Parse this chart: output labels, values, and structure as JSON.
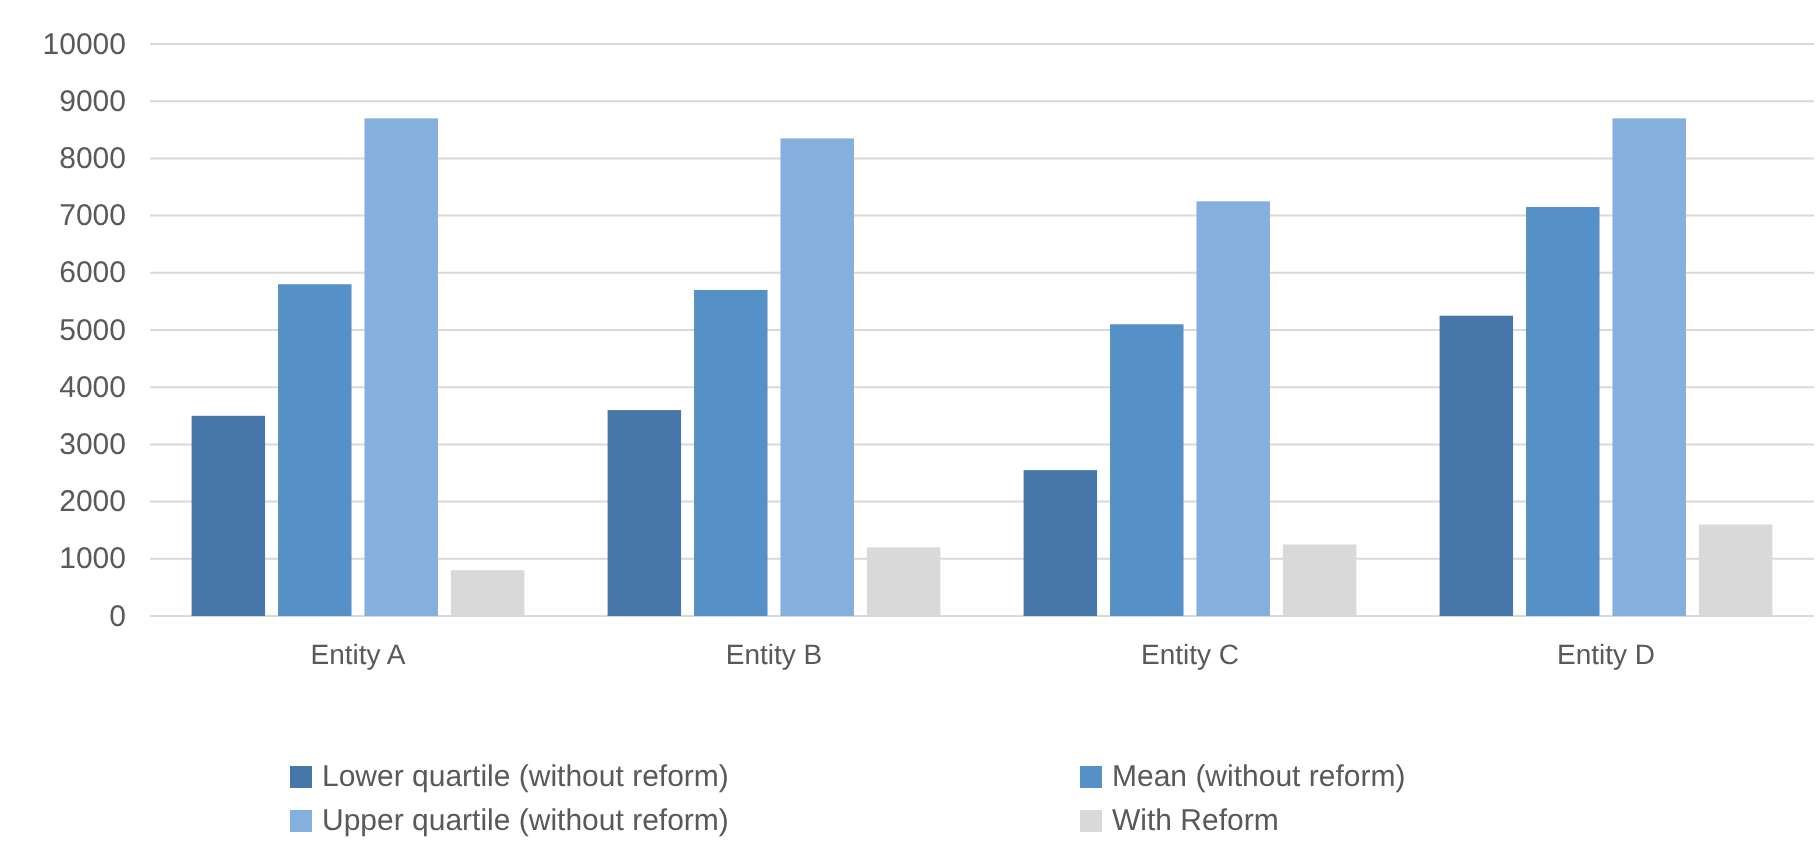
{
  "chart_data": {
    "type": "bar",
    "categories": [
      "Entity A",
      "Entity B",
      "Entity C",
      "Entity D"
    ],
    "series": [
      {
        "name": "Lower quartile (without reform)",
        "color": "#4677a8",
        "values": [
          3500,
          3600,
          2550,
          5250
        ]
      },
      {
        "name": "Mean (without reform)",
        "color": "#5590c7",
        "values": [
          5800,
          5700,
          5100,
          7150
        ]
      },
      {
        "name": "Upper quartile (without reform)",
        "color": "#85afdc",
        "values": [
          8700,
          8350,
          7250,
          8700
        ]
      },
      {
        "name": "With Reform",
        "color": "#d9d9d9",
        "values": [
          800,
          1200,
          1250,
          1600
        ]
      }
    ],
    "ylim": [
      0,
      10000
    ],
    "yticks": [
      0,
      1000,
      2000,
      3000,
      4000,
      5000,
      6000,
      7000,
      8000,
      9000,
      10000
    ],
    "grid": "y",
    "legend": "bottom"
  }
}
